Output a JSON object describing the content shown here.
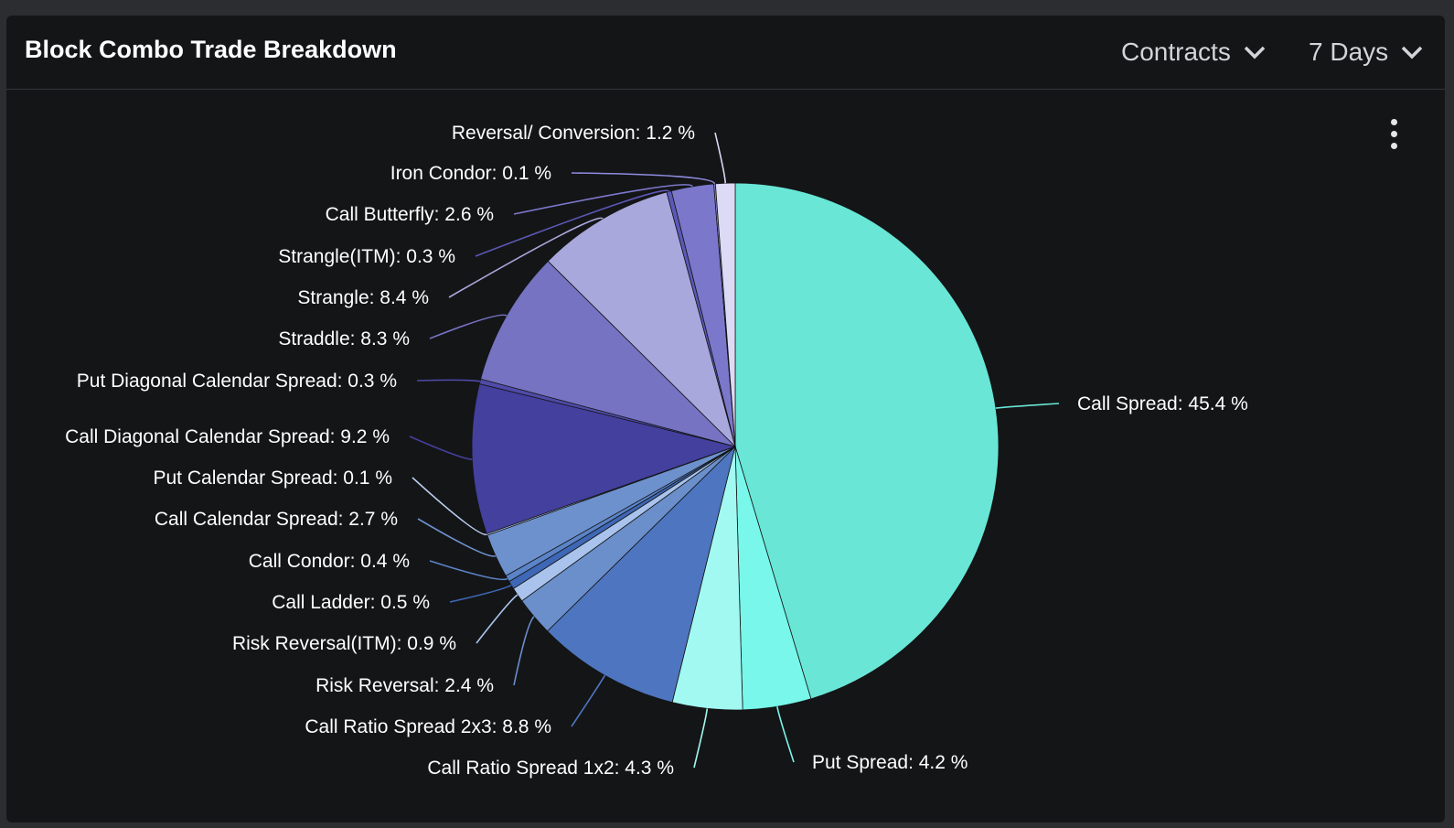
{
  "header": {
    "title": "Block Combo Trade Breakdown",
    "metric_dropdown": "Contracts",
    "range_dropdown": "7 Days"
  },
  "chart_data": {
    "type": "pie",
    "title": "Block Combo Trade Breakdown",
    "unit": "%",
    "slices": [
      {
        "label": "Call Spread",
        "value": 45.4,
        "color": "#69e6d6",
        "display": "Call Spread: 45.4 %"
      },
      {
        "label": "Put Spread",
        "value": 4.2,
        "color": "#78f7ea",
        "display": "Put Spread: 4.2 %"
      },
      {
        "label": "Call Ratio Spread 1x2",
        "value": 4.3,
        "color": "#a2f9f1",
        "display": "Call Ratio Spread 1x2: 4.3 %"
      },
      {
        "label": "Call Ratio Spread 2x3",
        "value": 8.8,
        "color": "#4e75bf",
        "display": "Call Ratio Spread 2x3: 8.8 %"
      },
      {
        "label": "Risk Reversal",
        "value": 2.4,
        "color": "#6a8fca",
        "display": "Risk Reversal: 2.4 %"
      },
      {
        "label": "Risk Reversal(ITM)",
        "value": 0.9,
        "color": "#a9c3ec",
        "display": "Risk Reversal(ITM): 0.9 %"
      },
      {
        "label": "Call Ladder",
        "value": 0.5,
        "color": "#3e67b5",
        "display": "Call Ladder: 0.5 %"
      },
      {
        "label": "Call Condor",
        "value": 0.4,
        "color": "#5b83c7",
        "display": "Call Condor: 0.4 %"
      },
      {
        "label": "Call Calendar Spread",
        "value": 2.7,
        "color": "#6d91cd",
        "display": "Call Calendar Spread: 2.7 %"
      },
      {
        "label": "Put Calendar Spread",
        "value": 0.1,
        "color": "#b8cdee",
        "display": "Put Calendar Spread: 0.1 %"
      },
      {
        "label": "Call Diagonal Calendar Spread",
        "value": 9.2,
        "color": "#43409e",
        "display": "Call Diagonal Calendar Spread: 9.2 %"
      },
      {
        "label": "Put Diagonal Calendar Spread",
        "value": 0.3,
        "color": "#4f4ba8",
        "display": "Put Diagonal Calendar Spread: 0.3 %"
      },
      {
        "label": "Straddle",
        "value": 8.3,
        "color": "#7573c2",
        "display": "Straddle: 8.3 %"
      },
      {
        "label": "Strangle",
        "value": 8.4,
        "color": "#a9a8dc",
        "display": "Strangle: 8.4 %"
      },
      {
        "label": "Strangle(ITM)",
        "value": 0.3,
        "color": "#5b58b6",
        "display": "Strangle(ITM): 0.3 %"
      },
      {
        "label": "Call Butterfly",
        "value": 2.6,
        "color": "#7b78cb",
        "display": "Call Butterfly: 2.6 %"
      },
      {
        "label": "Iron Condor",
        "value": 0.1,
        "color": "#8f8ce0",
        "display": "Iron Condor: 0.1 %"
      },
      {
        "label": "Reversal/ Conversion",
        "value": 1.2,
        "color": "#dcdaf4",
        "display": "Reversal/ Conversion: 1.2 %"
      }
    ]
  }
}
